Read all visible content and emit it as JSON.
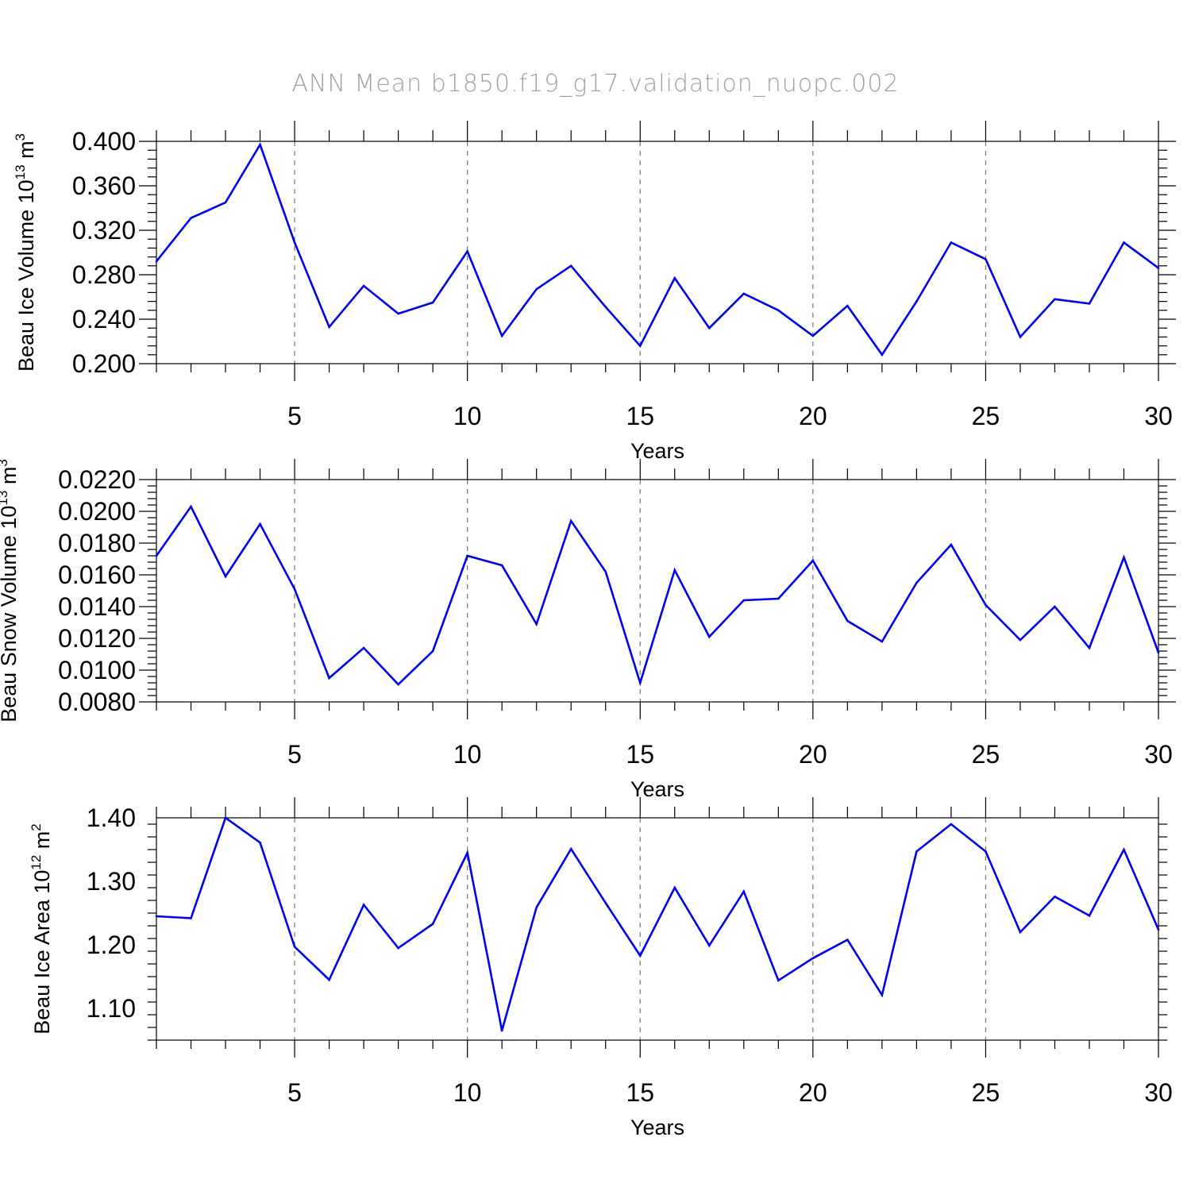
{
  "title": "ANN Mean  b1850.f19_g17.validation_nuopc.002",
  "colors": {
    "line": "#0000ee",
    "axis": "#000000",
    "grid": "#777777",
    "title": "#a0a0a0"
  },
  "chart_data": [
    {
      "type": "line",
      "xlabel": "Years",
      "ylabel": {
        "text": "Beau Ice Volume 10",
        "sup": "13",
        "unit": " m",
        "unit_sup": "3"
      },
      "xlim": [
        1,
        30
      ],
      "ylim": [
        0.2,
        0.4
      ],
      "xticks": [
        5,
        10,
        15,
        20,
        25,
        30
      ],
      "yticks": [
        0.2,
        0.24,
        0.28,
        0.32,
        0.36,
        0.4
      ],
      "ytick_labels": [
        "0.200",
        "0.240",
        "0.280",
        "0.320",
        "0.360",
        "0.400"
      ],
      "x": [
        1,
        2,
        3,
        4,
        5,
        6,
        7,
        8,
        9,
        10,
        11,
        12,
        13,
        14,
        15,
        16,
        17,
        18,
        19,
        20,
        21,
        22,
        23,
        24,
        25,
        26,
        27,
        28,
        29,
        30
      ],
      "values": [
        0.292,
        0.331,
        0.345,
        0.397,
        0.309,
        0.233,
        0.27,
        0.245,
        0.255,
        0.301,
        0.225,
        0.267,
        0.288,
        0.251,
        0.216,
        0.277,
        0.232,
        0.263,
        0.248,
        0.225,
        0.252,
        0.208,
        0.256,
        0.309,
        0.294,
        0.224,
        0.258,
        0.254,
        0.309,
        0.286
      ]
    },
    {
      "type": "line",
      "xlabel": "Years",
      "ylabel": {
        "text": "Beau Snow Volume 10",
        "sup": "13",
        "unit": " m",
        "unit_sup": "3"
      },
      "xlim": [
        1,
        30
      ],
      "ylim": [
        0.008,
        0.022
      ],
      "xticks": [
        5,
        10,
        15,
        20,
        25,
        30
      ],
      "yticks": [
        0.008,
        0.01,
        0.012,
        0.014,
        0.016,
        0.018,
        0.02,
        0.022
      ],
      "ytick_labels": [
        "0.0080",
        "0.0100",
        "0.0120",
        "0.0140",
        "0.0160",
        "0.0180",
        "0.0200",
        "0.0220"
      ],
      "x": [
        1,
        2,
        3,
        4,
        5,
        6,
        7,
        8,
        9,
        10,
        11,
        12,
        13,
        14,
        15,
        16,
        17,
        18,
        19,
        20,
        21,
        22,
        23,
        24,
        25,
        26,
        27,
        28,
        29,
        30
      ],
      "values": [
        0.0172,
        0.0203,
        0.0159,
        0.0192,
        0.0151,
        0.0095,
        0.0114,
        0.0091,
        0.0112,
        0.0172,
        0.0166,
        0.0129,
        0.0194,
        0.0162,
        0.0092,
        0.0163,
        0.0121,
        0.0144,
        0.0145,
        0.0169,
        0.0131,
        0.0118,
        0.0155,
        0.0179,
        0.0141,
        0.0119,
        0.014,
        0.0114,
        0.0171,
        0.0111
      ]
    },
    {
      "type": "line",
      "xlabel": "Years",
      "ylabel": {
        "text": "Beau Ice Area 10",
        "sup": "12",
        "unit": " m",
        "unit_sup": "2"
      },
      "xlim": [
        1,
        30
      ],
      "ylim": [
        1.05,
        1.4
      ],
      "xticks": [
        5,
        10,
        15,
        20,
        25,
        30
      ],
      "yticks": [
        1.1,
        1.2,
        1.3,
        1.4
      ],
      "ytick_labels": [
        "1.10",
        "1.20",
        "1.30",
        "1.40"
      ],
      "x": [
        1,
        2,
        3,
        4,
        5,
        6,
        7,
        8,
        9,
        10,
        11,
        12,
        13,
        14,
        15,
        16,
        17,
        18,
        19,
        20,
        21,
        22,
        23,
        24,
        25,
        26,
        27,
        28,
        29,
        30
      ],
      "values": [
        1.245,
        1.242,
        1.4,
        1.361,
        1.197,
        1.145,
        1.263,
        1.195,
        1.233,
        1.345,
        1.065,
        1.259,
        1.351,
        1.266,
        1.183,
        1.29,
        1.199,
        1.284,
        1.144,
        1.179,
        1.208,
        1.121,
        1.347,
        1.39,
        1.347,
        1.22,
        1.276,
        1.246,
        1.35,
        1.224
      ]
    }
  ]
}
